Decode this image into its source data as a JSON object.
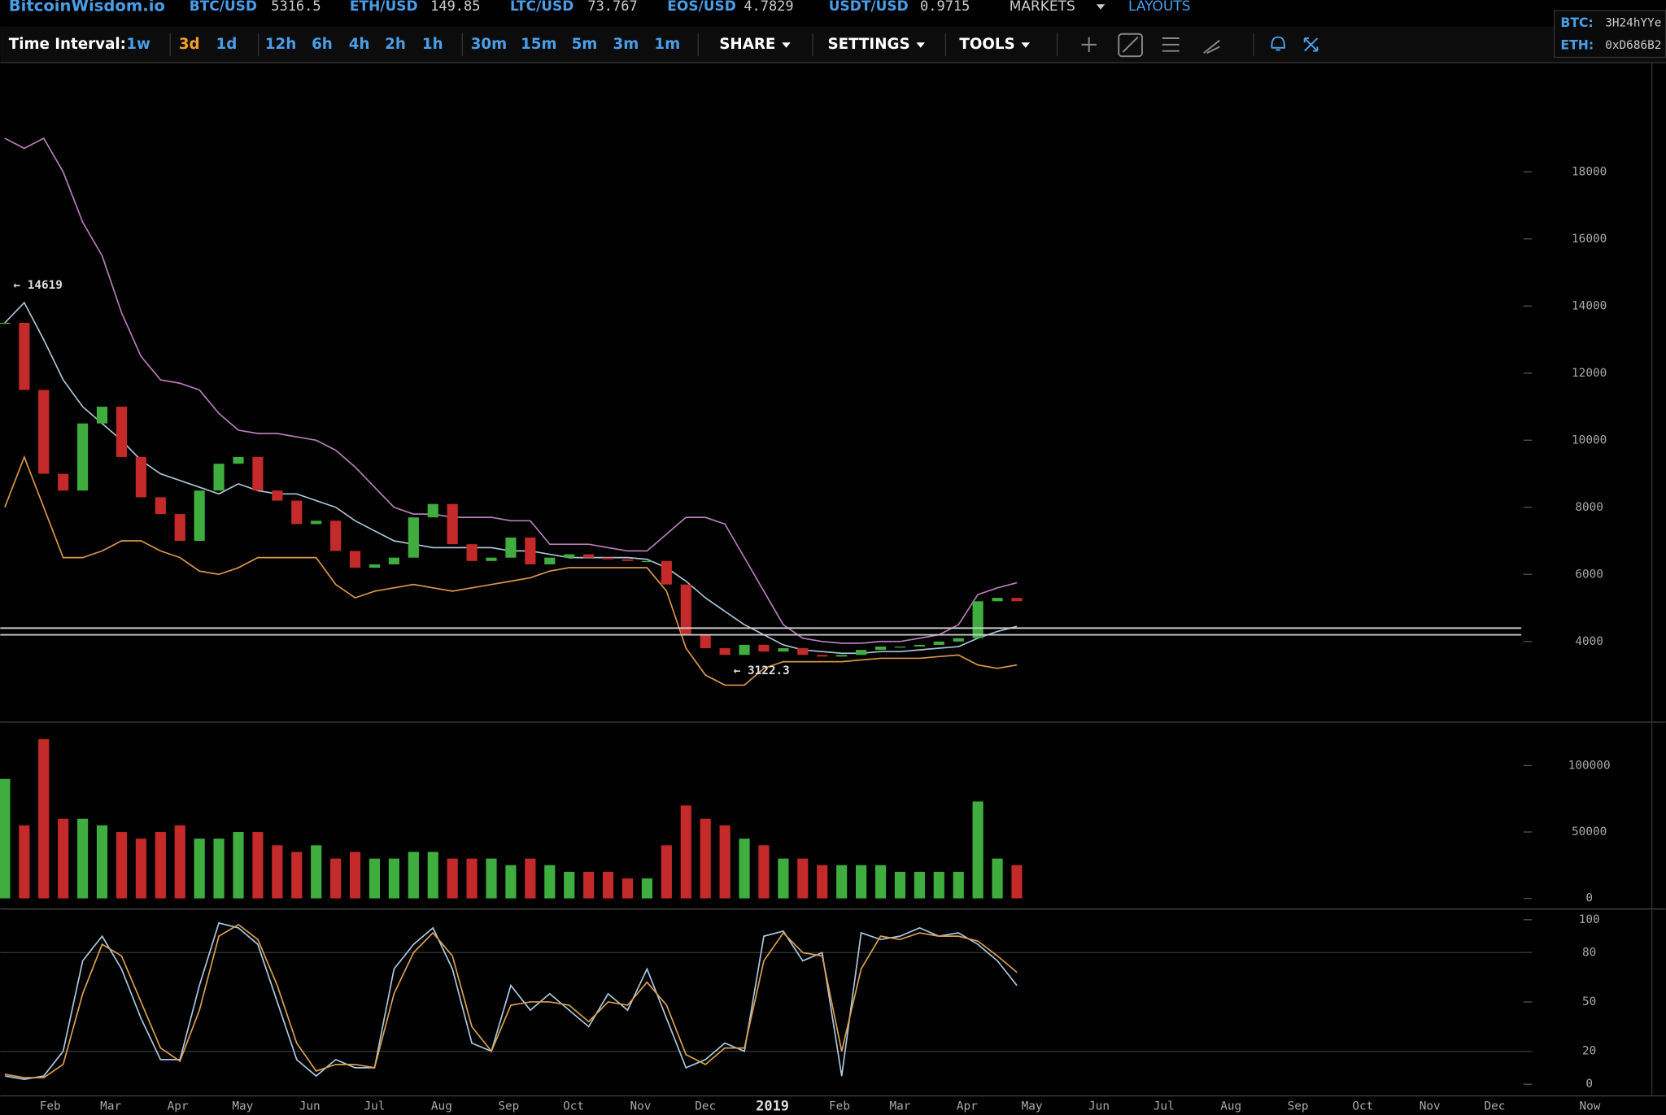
{
  "header": {
    "brand": "BitcoinWisdom.io",
    "tickers": [
      {
        "symbol": "BTC/USD",
        "price": 5316.5
      },
      {
        "symbol": "ETH/USD",
        "price": 149.85
      },
      {
        "symbol": "LTC/USD",
        "price": 73.767
      },
      {
        "symbol": "EOS/USD",
        "price": 4.7829
      },
      {
        "symbol": "USDT/USD",
        "price": 0.9715
      }
    ],
    "menus": [
      "MARKETS",
      "LAYOUTS"
    ],
    "donate": [
      {
        "coin": "BTC:",
        "address": "3H24hYYe"
      },
      {
        "coin": "ETH:",
        "address": "0xD686B2"
      }
    ]
  },
  "toolbar": {
    "label": "Time Interval:",
    "intervals": [
      "1w",
      "3d",
      "1d",
      "12h",
      "6h",
      "4h",
      "2h",
      "1h",
      "30m",
      "15m",
      "5m",
      "3m",
      "1m"
    ],
    "active": "3d",
    "menus": [
      "SHARE",
      "SETTINGS",
      "TOOLS"
    ]
  },
  "chart_data": {
    "type": "candlestick",
    "x": [
      10,
      19,
      28,
      37,
      46,
      55,
      64,
      73,
      82,
      91,
      100,
      109,
      118,
      127,
      136,
      145,
      154,
      163,
      172,
      181,
      190,
      199,
      208,
      217,
      226,
      235,
      244,
      253,
      262,
      271,
      280,
      289,
      298,
      307,
      316,
      325,
      334,
      343,
      352,
      361,
      370,
      379,
      388,
      397,
      406,
      415,
      424,
      433,
      442,
      451,
      460,
      469,
      478
    ],
    "xlim": [
      7.9,
      715.2
    ],
    "xticks": [
      {
        "value": 31,
        "label": "Feb"
      },
      {
        "value": 59,
        "label": "Mar"
      },
      {
        "value": 90,
        "label": "Apr"
      },
      {
        "value": 120,
        "label": "May"
      },
      {
        "value": 151,
        "label": "Jun"
      },
      {
        "value": 181,
        "label": "Jul"
      },
      {
        "value": 212,
        "label": "Aug"
      },
      {
        "value": 243,
        "label": "Sep"
      },
      {
        "value": 273,
        "label": "Oct"
      },
      {
        "value": 304,
        "label": "Nov"
      },
      {
        "value": 334,
        "label": "Dec"
      },
      {
        "value": 365,
        "label": "2019"
      },
      {
        "value": 396,
        "label": "Feb"
      },
      {
        "value": 424,
        "label": "Mar"
      },
      {
        "value": 455,
        "label": "Apr"
      },
      {
        "value": 485,
        "label": "May"
      },
      {
        "value": 516,
        "label": "Jun"
      },
      {
        "value": 546,
        "label": "Jul"
      },
      {
        "value": 577,
        "label": "Aug"
      },
      {
        "value": 608,
        "label": "Sep"
      },
      {
        "value": 638,
        "label": "Oct"
      },
      {
        "value": 669,
        "label": "Nov"
      },
      {
        "value": 699,
        "label": "Dec"
      },
      {
        "value": 743,
        "label": "Now"
      }
    ],
    "price": {
      "ylim": [
        1598,
        21255
      ],
      "yticks": [
        4000,
        6000,
        8000,
        10000,
        12000,
        14000,
        16000,
        18000
      ],
      "up_color": "#3fae3f",
      "down_color": "#c42a2a",
      "close": [
        13500,
        11500,
        9000,
        8500,
        10500,
        11000,
        9500,
        8300,
        7800,
        7000,
        8500,
        9300,
        9500,
        8500,
        8200,
        7500,
        7600,
        6700,
        6200,
        6300,
        6500,
        7700,
        8100,
        6900,
        6400,
        6500,
        7100,
        6300,
        6500,
        6600,
        6500,
        6450,
        6400,
        6400,
        5700,
        4200,
        3800,
        3600,
        3900,
        3700,
        3800,
        3600,
        3550,
        3600,
        3750,
        3850,
        3850,
        3900,
        4000,
        4100,
        5200,
        5300,
        5200
      ],
      "bands": [
        {
          "color": "#b57db8",
          "values": [
            19000,
            18700,
            19000,
            18000,
            16500,
            15500,
            13800,
            12500,
            11800,
            11700,
            11500,
            10800,
            10300,
            10200,
            10200,
            10100,
            10000,
            9700,
            9200,
            8600,
            8000,
            7800,
            7800,
            7700,
            7700,
            7700,
            7600,
            7600,
            6900,
            6900,
            6900,
            6800,
            6700,
            6700,
            7200,
            7700,
            7700,
            7500,
            6500,
            5500,
            4500,
            4100,
            4000,
            3950,
            3950,
            4000,
            4000,
            4100,
            4200,
            4500,
            5400,
            5600,
            5750
          ]
        },
        {
          "color": "#a9c2d4",
          "values": [
            13500,
            14100,
            13000,
            11800,
            11000,
            10500,
            10000,
            9400,
            9000,
            8800,
            8600,
            8400,
            8700,
            8500,
            8400,
            8400,
            8200,
            8000,
            7600,
            7300,
            7000,
            6900,
            6800,
            6800,
            6800,
            6800,
            6700,
            6700,
            6600,
            6500,
            6500,
            6500,
            6500,
            6450,
            6200,
            5800,
            5300,
            4900,
            4500,
            4200,
            3900,
            3750,
            3700,
            3650,
            3650,
            3700,
            3700,
            3750,
            3800,
            3850,
            4100,
            4300,
            4450
          ]
        },
        {
          "color": "#d9964a",
          "values": [
            8000,
            9500,
            8000,
            6500,
            6500,
            6700,
            7000,
            7000,
            6700,
            6500,
            6100,
            6000,
            6200,
            6500,
            6500,
            6500,
            6500,
            5700,
            5300,
            5500,
            5600,
            5700,
            5600,
            5500,
            5600,
            5700,
            5800,
            5900,
            6100,
            6200,
            6200,
            6200,
            6200,
            6200,
            5500,
            3800,
            3000,
            2700,
            2700,
            3200,
            3400,
            3400,
            3400,
            3400,
            3450,
            3500,
            3500,
            3500,
            3550,
            3600,
            3300,
            3200,
            3300
          ]
        }
      ],
      "hlines": [
        4400,
        4200
      ],
      "annotations": [
        {
          "x": 12,
          "value": 14619,
          "label": "← 14619"
        },
        {
          "x": 345,
          "value": 3122.3,
          "label": "← 3122.3"
        }
      ]
    },
    "volume": {
      "ylim": [
        -8000,
        132800
      ],
      "yticks": [
        0,
        50000,
        100000
      ],
      "values": [
        90000,
        55000,
        120000,
        60000,
        60000,
        55000,
        50000,
        45000,
        50000,
        55000,
        45000,
        45000,
        50000,
        50000,
        40000,
        35000,
        40000,
        30000,
        35000,
        30000,
        30000,
        35000,
        35000,
        30000,
        30000,
        30000,
        25000,
        30000,
        25000,
        20000,
        20000,
        20000,
        15000,
        15000,
        40000,
        70000,
        60000,
        55000,
        45000,
        40000,
        30000,
        30000,
        25000,
        25000,
        25000,
        25000,
        20000,
        20000,
        20000,
        20000,
        73000,
        30000,
        25000
      ]
    },
    "stochastic": {
      "ylim": [
        -7.1,
        106.5
      ],
      "yticks": [
        0,
        20,
        50,
        80,
        100
      ],
      "grid_lines": [
        20,
        80
      ],
      "series": [
        {
          "color": "#a9c8e0",
          "values": [
            5,
            3,
            5,
            20,
            75,
            90,
            70,
            40,
            15,
            15,
            60,
            98,
            95,
            85,
            50,
            15,
            5,
            15,
            10,
            10,
            70,
            85,
            95,
            70,
            25,
            20,
            60,
            45,
            55,
            45,
            35,
            55,
            45,
            70,
            40,
            10,
            15,
            25,
            20,
            90,
            93,
            75,
            80,
            5,
            92,
            88,
            90,
            95,
            90,
            92,
            85,
            75,
            60
          ]
        },
        {
          "color": "#d8a050",
          "values": [
            6,
            4,
            4,
            12,
            55,
            85,
            78,
            50,
            22,
            14,
            45,
            90,
            97,
            88,
            60,
            25,
            8,
            12,
            12,
            10,
            55,
            80,
            92,
            78,
            35,
            20,
            48,
            50,
            50,
            48,
            38,
            50,
            48,
            62,
            48,
            18,
            12,
            22,
            22,
            75,
            92,
            80,
            78,
            20,
            70,
            90,
            88,
            92,
            90,
            90,
            87,
            78,
            68
          ]
        }
      ]
    }
  }
}
